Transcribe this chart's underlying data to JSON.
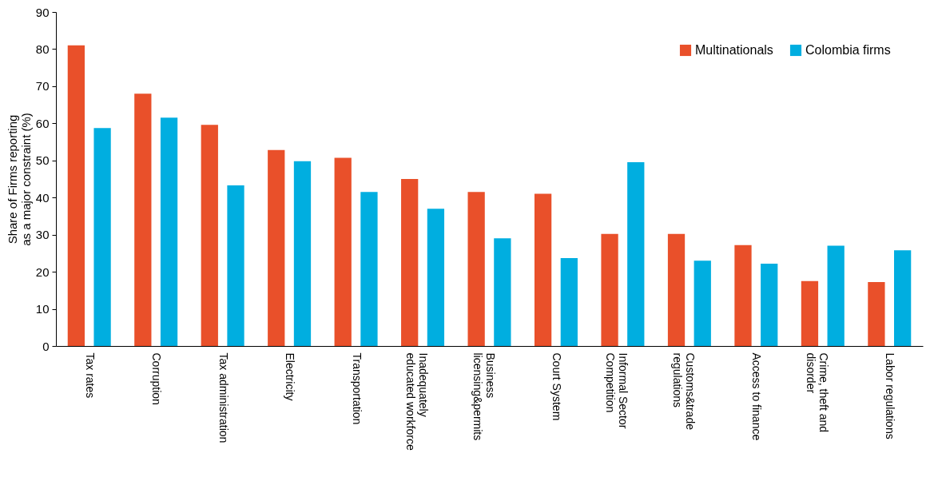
{
  "chart_data": {
    "type": "bar",
    "ylabel": "Share of Firms reporting as a major constraint (%)",
    "categories": [
      "Tax rates",
      "Corruption",
      "Tax administration",
      "Electricity",
      "Transportation",
      "Inadequately educated workforce",
      "Business licensing&permits",
      "Court System",
      "Informal Sector Competition",
      "Customs&trade regulations",
      "Access to finance",
      "Crime, theft and disorder",
      "Labor regulations"
    ],
    "series": [
      {
        "name": "Multinationals",
        "color": "#e9502a",
        "values": [
          81,
          68,
          59.6,
          52.8,
          50.7,
          45,
          41.5,
          41,
          30.2,
          30.2,
          27.2,
          17.5,
          17.2
        ]
      },
      {
        "name": "Colombia firms",
        "color": "#00aee0",
        "values": [
          58.7,
          61.5,
          43.3,
          49.8,
          41.5,
          37,
          29,
          23.7,
          49.5,
          23,
          22.2,
          27,
          25.8
        ]
      }
    ],
    "ylim": [
      0,
      90
    ],
    "yticks": [
      0,
      10,
      20,
      30,
      40,
      50,
      60,
      70,
      80,
      90
    ],
    "grid": false,
    "legend": "top right"
  }
}
